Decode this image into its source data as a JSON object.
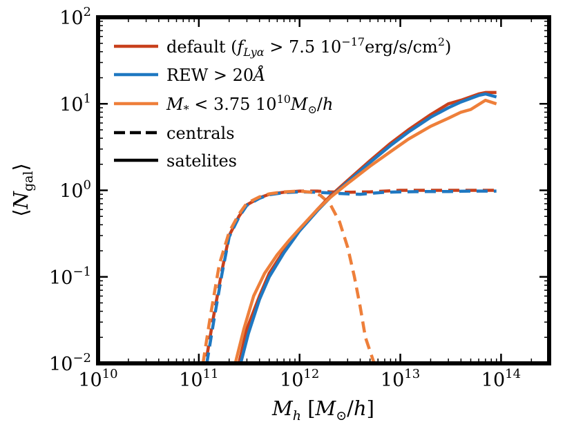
{
  "chart_data": {
    "type": "line",
    "title": "",
    "xlabel": "M_h [M_⊙/h]",
    "ylabel": "⟨N_gal⟩",
    "xscale": "log",
    "yscale": "log",
    "xlim": [
      10000000000.0,
      300000000000000.0
    ],
    "ylim": [
      0.01,
      100
    ],
    "x_ticks": [
      {
        "value": 10000000000.0,
        "base": "10",
        "exp": "10"
      },
      {
        "value": 100000000000.0,
        "base": "10",
        "exp": "11"
      },
      {
        "value": 1000000000000.0,
        "base": "10",
        "exp": "12"
      },
      {
        "value": 10000000000000.0,
        "base": "10",
        "exp": "13"
      },
      {
        "value": 100000000000000.0,
        "base": "10",
        "exp": "14"
      }
    ],
    "y_ticks": [
      {
        "value": 0.01,
        "base": "10",
        "exp": "−2"
      },
      {
        "value": 0.1,
        "base": "10",
        "exp": "−1"
      },
      {
        "value": 1,
        "base": "10",
        "exp": "0"
      },
      {
        "value": 10,
        "base": "10",
        "exp": "1"
      },
      {
        "value": 100,
        "base": "10",
        "exp": "2"
      }
    ],
    "legend_position": "top-left",
    "legend": [
      {
        "key": "default",
        "label": "default (f_{Lyα} > 7.5 10^{−17}erg/s/cm^{2})",
        "color": "#c8401c",
        "style": "solid"
      },
      {
        "key": "rew",
        "label": "REW > 20Å",
        "color": "#1f78c1",
        "style": "solid"
      },
      {
        "key": "mstar",
        "label": "M_* < 3.75 10^{10} M_⊙/h",
        "color": "#ee7f3a",
        "style": "solid"
      },
      {
        "key": "centrals",
        "label": "centrals",
        "color": "#000000",
        "style": "dashed"
      },
      {
        "key": "satellites",
        "label": "satelites",
        "color": "#000000",
        "style": "solid"
      }
    ],
    "series": [
      {
        "name": "default centrals",
        "color": "#c8401c",
        "style": "dashed",
        "x": [
          120000000000.0,
          140000000000.0,
          170000000000.0,
          200000000000.0,
          250000000000.0,
          300000000000.0,
          400000000000.0,
          500000000000.0,
          700000000000.0,
          1000000000000.0,
          1500000000000.0,
          2000000000000.0,
          3000000000000.0,
          5000000000000.0,
          7000000000000.0,
          10000000000000.0,
          20000000000000.0,
          30000000000000.0,
          50000000000000.0,
          90000000000000.0
        ],
        "y": [
          0.012,
          0.035,
          0.12,
          0.3,
          0.5,
          0.68,
          0.82,
          0.9,
          0.95,
          0.98,
          0.98,
          0.96,
          0.95,
          0.96,
          0.98,
          1.0,
          1.0,
          1.0,
          1.0,
          1.0
        ]
      },
      {
        "name": "REW centrals",
        "color": "#1f78c1",
        "style": "dashed",
        "x": [
          120000000000.0,
          140000000000.0,
          170000000000.0,
          200000000000.0,
          250000000000.0,
          300000000000.0,
          400000000000.0,
          500000000000.0,
          700000000000.0,
          1000000000000.0,
          1500000000000.0,
          2000000000000.0,
          3000000000000.0,
          4000000000000.0,
          5000000000000.0,
          7000000000000.0,
          10000000000000.0,
          20000000000000.0,
          30000000000000.0,
          50000000000000.0,
          90000000000000.0
        ],
        "y": [
          0.01,
          0.03,
          0.11,
          0.29,
          0.49,
          0.67,
          0.81,
          0.89,
          0.94,
          0.96,
          0.95,
          0.93,
          0.91,
          0.9,
          0.92,
          0.95,
          0.96,
          0.97,
          0.97,
          0.98,
          0.98
        ]
      },
      {
        "name": "M* centrals",
        "color": "#ee7f3a",
        "style": "dashed",
        "x": [
          110000000000.0,
          130000000000.0,
          160000000000.0,
          200000000000.0,
          250000000000.0,
          300000000000.0,
          400000000000.0,
          500000000000.0,
          700000000000.0,
          1000000000000.0,
          1300000000000.0,
          1600000000000.0,
          2000000000000.0,
          2500000000000.0,
          3000000000000.0,
          3500000000000.0,
          4000000000000.0,
          4500000000000.0,
          5500000000000.0
        ],
        "y": [
          0.01,
          0.035,
          0.14,
          0.33,
          0.53,
          0.71,
          0.84,
          0.91,
          0.96,
          0.98,
          0.95,
          0.88,
          0.7,
          0.43,
          0.22,
          0.1,
          0.045,
          0.02,
          0.01
        ]
      },
      {
        "name": "default satellites",
        "color": "#c8401c",
        "style": "solid",
        "x": [
          250000000000.0,
          300000000000.0,
          400000000000.0,
          500000000000.0,
          700000000000.0,
          1000000000000.0,
          1500000000000.0,
          2000000000000.0,
          3000000000000.0,
          5000000000000.0,
          8000000000000.0,
          12000000000000.0,
          20000000000000.0,
          30000000000000.0,
          40000000000000.0,
          60000000000000.0,
          70000000000000.0,
          90000000000000.0
        ],
        "y": [
          0.01,
          0.025,
          0.06,
          0.11,
          0.2,
          0.35,
          0.6,
          0.85,
          1.3,
          2.2,
          3.5,
          5,
          7.5,
          10,
          11,
          13,
          13.5,
          13.5
        ]
      },
      {
        "name": "REW satellites",
        "color": "#1f78c1",
        "style": "solid",
        "x": [
          260000000000.0,
          310000000000.0,
          400000000000.0,
          500000000000.0,
          700000000000.0,
          1000000000000.0,
          1500000000000.0,
          2000000000000.0,
          3000000000000.0,
          5000000000000.0,
          8000000000000.0,
          12000000000000.0,
          20000000000000.0,
          30000000000000.0,
          40000000000000.0,
          60000000000000.0,
          70000000000000.0,
          90000000000000.0
        ],
        "y": [
          0.01,
          0.022,
          0.055,
          0.1,
          0.19,
          0.34,
          0.58,
          0.82,
          1.25,
          2.1,
          3.3,
          4.7,
          7,
          9,
          10.5,
          12.5,
          13,
          12
        ]
      },
      {
        "name": "M* satellites",
        "color": "#ee7f3a",
        "style": "solid",
        "x": [
          230000000000.0,
          280000000000.0,
          350000000000.0,
          450000000000.0,
          600000000000.0,
          800000000000.0,
          1000000000000.0,
          1500000000000.0,
          2000000000000.0,
          3000000000000.0,
          5000000000000.0,
          8000000000000.0,
          12000000000000.0,
          20000000000000.0,
          30000000000000.0,
          40000000000000.0,
          50000000000000.0,
          70000000000000.0,
          90000000000000.0
        ],
        "y": [
          0.01,
          0.025,
          0.06,
          0.11,
          0.18,
          0.27,
          0.36,
          0.6,
          0.82,
          1.2,
          1.9,
          2.8,
          3.9,
          5.5,
          6.8,
          8,
          8.6,
          11,
          10
        ]
      }
    ]
  }
}
